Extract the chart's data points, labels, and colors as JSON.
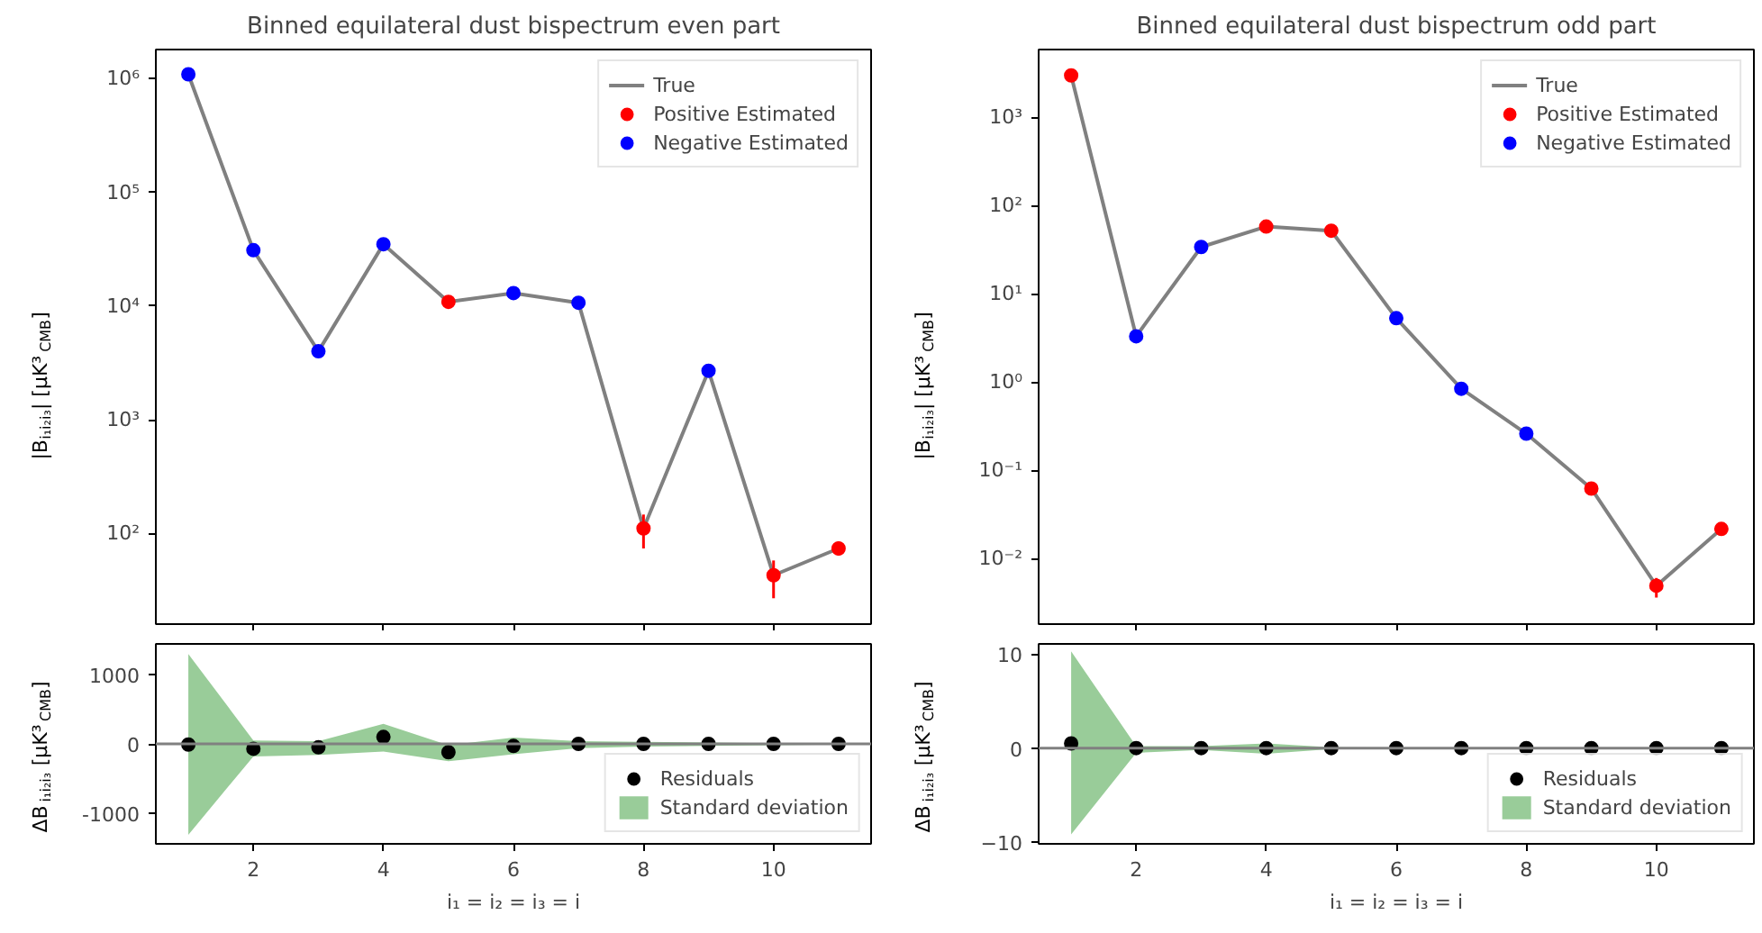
{
  "chart_data": [
    {
      "type": "line",
      "title": "Binned equilateral dust bispectrum even part",
      "ylabel": "|B$_{i₁i₂i₃}$| [μK³$_{CMB}$]",
      "x": [
        1,
        2,
        3,
        4,
        5,
        6,
        7,
        8,
        9,
        10,
        11
      ],
      "log": "y",
      "xlim": [
        0.5,
        11.5
      ],
      "xticks": [
        2,
        4,
        6,
        8,
        10
      ],
      "ylim": [
        16,
        1800000
      ],
      "yticks": [
        {
          "value": 100,
          "label": "10²"
        },
        {
          "value": 1000,
          "label": "10³"
        },
        {
          "value": 10000,
          "label": "10⁴"
        },
        {
          "value": 100000,
          "label": "10⁵"
        },
        {
          "value": 1000000,
          "label": "10⁶"
        }
      ],
      "tick_labels": "y",
      "legend": "top right",
      "grid": false,
      "series": [
        {
          "name": "True",
          "color": "#808080",
          "values": [
            1090000,
            31000,
            4000,
            35000,
            10900,
            13000,
            10700,
            111,
            2700,
            43,
            74
          ]
        },
        {
          "name": "Positive Estimated",
          "type": "scatter",
          "marker": "circle",
          "color": "#ff0000",
          "values": [
            null,
            null,
            null,
            null,
            10900,
            null,
            null,
            111,
            null,
            43,
            74
          ],
          "errors": [
            null,
            null,
            null,
            null,
            null,
            null,
            null,
            [
              74,
              147
            ],
            null,
            [
              27,
              58
            ],
            [
              64,
              85
            ]
          ]
        },
        {
          "name": "Negative Estimated",
          "type": "scatter",
          "marker": "circle",
          "color": "#0000ff",
          "values": [
            1090000,
            31000,
            4000,
            35000,
            null,
            13000,
            10700,
            null,
            2700,
            null,
            null
          ]
        }
      ]
    },
    {
      "type": "line",
      "title": "Binned equilateral dust bispectrum odd part",
      "ylabel": "|B$_{i₁i₂i₃}$| [μK³$_{CMB}$]",
      "x": [
        1,
        2,
        3,
        4,
        5,
        6,
        7,
        8,
        9,
        10,
        11
      ],
      "log": "y",
      "xlim": [
        0.5,
        11.5
      ],
      "xticks": [
        2,
        4,
        6,
        8,
        10
      ],
      "ylim": [
        0.0018,
        5900
      ],
      "yticks": [
        {
          "value": 0.01,
          "label": "10⁻²"
        },
        {
          "value": 0.1,
          "label": "10⁻¹"
        },
        {
          "value": 1,
          "label": "10⁰"
        },
        {
          "value": 10,
          "label": "10¹"
        },
        {
          "value": 100,
          "label": "10²"
        },
        {
          "value": 1000,
          "label": "10³"
        }
      ],
      "tick_labels": "y",
      "legend": "top right",
      "grid": false,
      "series": [
        {
          "name": "True",
          "color": "#808080",
          "values": [
            3000,
            3.3,
            34,
            58,
            52,
            5.3,
            0.84,
            0.26,
            0.062,
            0.0049,
            0.0216
          ]
        },
        {
          "name": "Positive Estimated",
          "type": "scatter",
          "marker": "circle",
          "color": "#ff0000",
          "values": [
            3000,
            null,
            null,
            58,
            52,
            null,
            null,
            null,
            0.062,
            0.0049,
            0.0216
          ],
          "errors": [
            null,
            null,
            null,
            null,
            null,
            null,
            null,
            null,
            null,
            [
              0.0036,
              0.006
            ],
            null
          ]
        },
        {
          "name": "Negative Estimated",
          "type": "scatter",
          "marker": "circle",
          "color": "#0000ff",
          "values": [
            null,
            3.3,
            34,
            null,
            null,
            5.3,
            0.84,
            0.26,
            null,
            null,
            null
          ]
        }
      ]
    },
    {
      "type": "scatter",
      "xlabel": "i₁ = i₂ = i₃ = i",
      "ylabel": "ΔB$_{i₁i₂i₃}$ [μK³$_{CMB}$]",
      "x": [
        1,
        2,
        3,
        4,
        5,
        6,
        7,
        8,
        9,
        10,
        11
      ],
      "xlim": [
        0.5,
        11.5
      ],
      "xticks": [
        2,
        4,
        6,
        8,
        10
      ],
      "ylim": [
        -1440,
        1440
      ],
      "yticks": [
        -1000,
        0,
        1000
      ],
      "legend": "bottom right",
      "grid": false,
      "ref_lines": [
        {
          "axis": "y",
          "value": 0,
          "color": "#808080"
        }
      ],
      "series": [
        {
          "name": "Residuals",
          "marker": "circle",
          "color": "#000000",
          "values": [
            -10,
            -70,
            -50,
            100,
            -120,
            -30,
            0,
            0,
            0,
            0,
            0
          ]
        },
        {
          "name": "Standard deviation",
          "type": "line",
          "color": "#99cc99",
          "values": [
            null,
            null,
            null,
            null,
            null,
            null,
            null,
            null,
            null,
            null,
            null
          ],
          "lower": [
            -1310,
            -180,
            -160,
            -110,
            -250,
            -150,
            -60,
            -40,
            -30,
            -20,
            -10
          ],
          "upper": [
            1295,
            50,
            40,
            290,
            -20,
            90,
            40,
            30,
            20,
            10,
            10
          ]
        }
      ]
    },
    {
      "type": "scatter",
      "xlabel": "i₁ = i₂ = i₃ = i",
      "ylabel": "ΔB$_{i₁i₂i₃}$ [μK³$_{CMB}$]",
      "x": [
        1,
        2,
        3,
        4,
        5,
        6,
        7,
        8,
        9,
        10,
        11
      ],
      "xlim": [
        0.5,
        11.5
      ],
      "xticks": [
        2,
        4,
        6,
        8,
        10
      ],
      "ylim": [
        -10.2,
        11.1
      ],
      "yticks": [
        {
          "value": -10,
          "label": "−10"
        },
        0,
        10
      ],
      "legend": "bottom right",
      "grid": false,
      "ref_lines": [
        {
          "axis": "y",
          "value": 0,
          "color": "#808080"
        }
      ],
      "series": [
        {
          "name": "Residuals",
          "marker": "circle",
          "color": "#000000",
          "values": [
            0.5,
            0,
            0,
            0,
            0,
            0,
            0,
            0,
            0,
            0,
            0
          ]
        },
        {
          "name": "Standard deviation",
          "type": "line",
          "color": "#99cc99",
          "values": [
            null,
            null,
            null,
            null,
            null,
            null,
            null,
            null,
            null,
            null,
            null
          ],
          "lower": [
            -9.2,
            -0.5,
            -0.2,
            -0.6,
            -0.1,
            -0.05,
            -0.05,
            -0.05,
            -0.05,
            -0.05,
            -0.05
          ],
          "upper": [
            10.3,
            0.2,
            0.2,
            0.5,
            0.1,
            0.05,
            0.05,
            0.05,
            0.05,
            0.05,
            0.05
          ]
        }
      ]
    }
  ]
}
